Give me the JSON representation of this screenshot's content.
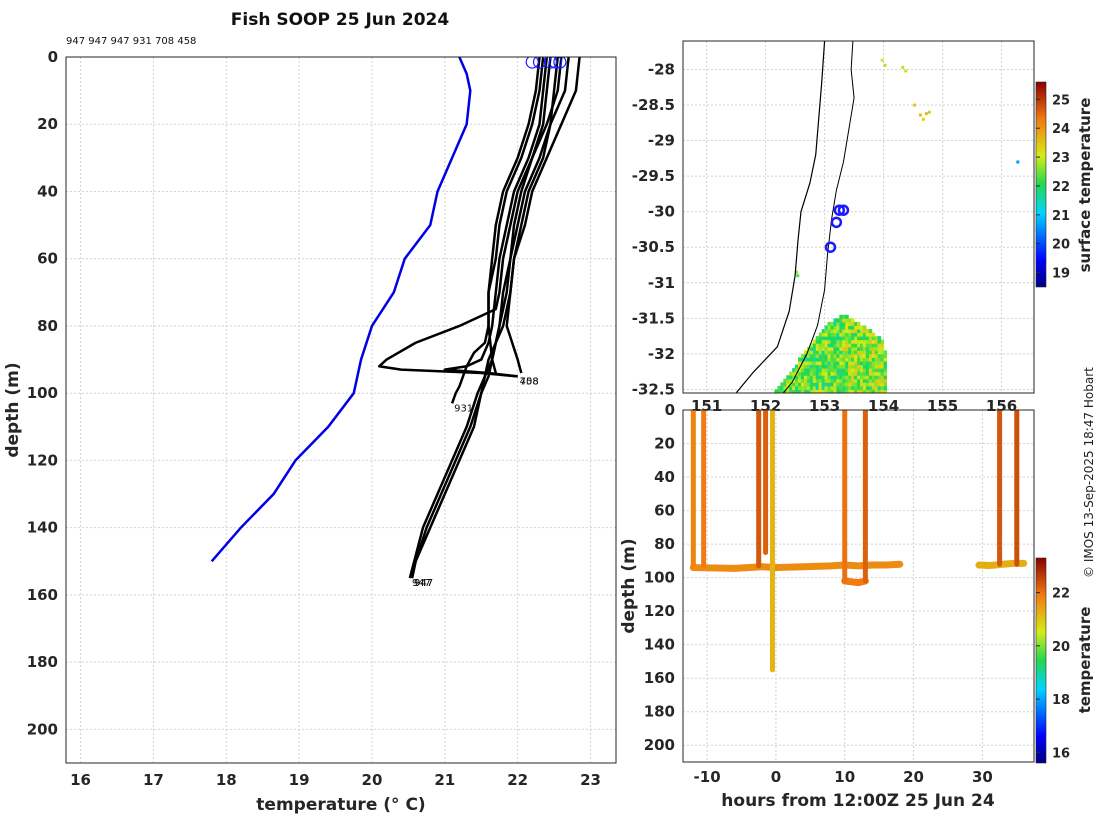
{
  "title": "Fish SOOP 25 Jun 2024",
  "drop_note": "947 947 947 931 708 458",
  "credit": "© IMOS 13-Sep-2025 18:47 Hobart",
  "colors": {
    "profile": "#000000",
    "climatology": "#0000e6",
    "marker": "#1a1aff",
    "coast": "#000000"
  },
  "chart_data": [
    {
      "type": "line",
      "name": "temperature-profiles",
      "xlabel": "temperature (° C)",
      "ylabel": "depth (m)",
      "xlim": [
        15.8,
        23.35
      ],
      "ylim": [
        0,
        210
      ],
      "xticks": [
        16,
        17,
        18,
        19,
        20,
        21,
        22,
        23
      ],
      "yticks": [
        0,
        20,
        40,
        60,
        80,
        100,
        120,
        140,
        160,
        180,
        200
      ],
      "climatology": {
        "depths": [
          0,
          5,
          10,
          20,
          30,
          40,
          50,
          60,
          70,
          80,
          90,
          100,
          110,
          120,
          130,
          140,
          150
        ],
        "values": [
          21.2,
          21.3,
          21.35,
          21.3,
          21.1,
          20.9,
          20.8,
          20.45,
          20.3,
          20.0,
          19.85,
          19.75,
          19.4,
          18.95,
          18.65,
          18.2,
          17.8
        ]
      },
      "series": [
        {
          "name": "p1",
          "label": "947",
          "depths": [
            0,
            10,
            20,
            30,
            40,
            50,
            60,
            70,
            80,
            85,
            90,
            95,
            100,
            110,
            120,
            130,
            140,
            150,
            155
          ],
          "values": [
            22.55,
            22.5,
            22.45,
            22.35,
            22.15,
            22.05,
            21.95,
            21.9,
            21.8,
            21.7,
            21.6,
            21.55,
            21.5,
            21.4,
            21.2,
            21.0,
            20.8,
            20.6,
            20.55
          ]
        },
        {
          "name": "p2",
          "label": "947",
          "depths": [
            0,
            10,
            20,
            30,
            40,
            50,
            60,
            70,
            80,
            85,
            90,
            95,
            100,
            110,
            120,
            130,
            140,
            150,
            155
          ],
          "values": [
            22.7,
            22.65,
            22.45,
            22.3,
            22.1,
            22.0,
            21.9,
            21.85,
            21.75,
            21.7,
            21.65,
            21.6,
            21.5,
            21.35,
            21.15,
            20.95,
            20.75,
            20.6,
            20.55
          ]
        },
        {
          "name": "p3",
          "label": "947",
          "depths": [
            0,
            10,
            20,
            30,
            40,
            50,
            60,
            70,
            80,
            85,
            90,
            95,
            100,
            110,
            120,
            130,
            140,
            150,
            155
          ],
          "values": [
            22.45,
            22.4,
            22.35,
            22.2,
            22.05,
            21.95,
            21.9,
            21.8,
            21.75,
            21.7,
            21.65,
            21.55,
            21.45,
            21.3,
            21.1,
            20.9,
            20.7,
            20.58,
            20.52
          ]
        },
        {
          "name": "p4",
          "label": "931",
          "depths": [
            0,
            10,
            20,
            30,
            40,
            50,
            60,
            70,
            80,
            85,
            88,
            92,
            95,
            98,
            100,
            103
          ],
          "values": [
            22.35,
            22.3,
            22.2,
            22.05,
            21.85,
            21.75,
            21.7,
            21.6,
            21.6,
            21.55,
            21.4,
            21.3,
            21.25,
            21.2,
            21.15,
            21.1
          ]
        },
        {
          "name": "p5",
          "label": "708",
          "depths": [
            0,
            10,
            20,
            30,
            40,
            50,
            60,
            70,
            75,
            80,
            85,
            90,
            92,
            93,
            94,
            95
          ],
          "values": [
            22.6,
            22.55,
            22.4,
            22.2,
            22.0,
            21.9,
            21.8,
            21.75,
            21.7,
            21.2,
            20.6,
            20.2,
            20.1,
            20.4,
            21.5,
            22.0
          ]
        },
        {
          "name": "p6",
          "label": "458",
          "depths": [
            0,
            10,
            20,
            30,
            40,
            50,
            60,
            70,
            80,
            85,
            90,
            92,
            93,
            94,
            95
          ],
          "values": [
            22.4,
            22.35,
            22.3,
            22.15,
            21.95,
            21.85,
            21.75,
            21.7,
            21.65,
            21.6,
            21.5,
            21.3,
            21.0,
            21.6,
            22.0
          ]
        },
        {
          "name": "p7",
          "label": "",
          "depths": [
            0,
            10,
            20,
            30,
            40,
            50,
            60,
            70,
            80,
            90,
            94
          ],
          "values": [
            22.85,
            22.8,
            22.6,
            22.4,
            22.2,
            22.1,
            21.95,
            21.9,
            21.85,
            22.0,
            22.05
          ]
        },
        {
          "name": "p8",
          "label": "",
          "depths": [
            0,
            10,
            20,
            30,
            40,
            50,
            60,
            70,
            80,
            90,
            94
          ],
          "values": [
            22.3,
            22.25,
            22.15,
            22.0,
            21.8,
            21.7,
            21.65,
            21.6,
            21.6,
            21.65,
            21.7
          ]
        }
      ],
      "surface_markers": [
        22.2,
        22.3,
        22.45,
        22.52,
        22.58
      ]
    },
    {
      "type": "heatmap",
      "name": "surface-temperature-map",
      "xlim": [
        150.6,
        156.55
      ],
      "ylim": [
        -32.55,
        -27.6
      ],
      "xticks": [
        151,
        152,
        153,
        154,
        155,
        156
      ],
      "xtick_labels": [
        "151",
        "152",
        "153",
        "154",
        "155",
        "156"
      ],
      "yticks": [
        -28,
        -28.5,
        -29,
        -29.5,
        -30,
        -30.5,
        -31,
        -31.5,
        -32,
        -32.5
      ],
      "ytick_labels": [
        "-28",
        "-28.5",
        "-29",
        "-29.5",
        "-30",
        "-30.5",
        "-31",
        "-31.5",
        "-32",
        "-32.5"
      ],
      "colorbar": {
        "label": "surface temperature",
        "range": [
          18.5,
          25.6
        ],
        "ticks": [
          19,
          20,
          21,
          22,
          23,
          24,
          25
        ]
      },
      "drop_locations": [
        [
          153.25,
          -29.98
        ],
        [
          153.32,
          -29.98
        ],
        [
          153.2,
          -30.15
        ],
        [
          153.1,
          -30.5
        ]
      ]
    },
    {
      "type": "scatter",
      "name": "depth-time-section",
      "xlabel": "hours from 12:00Z 25 Jun 24",
      "ylabel": "depth (m)",
      "xlim": [
        -13.5,
        37.5
      ],
      "ylim": [
        0,
        210
      ],
      "xticks": [
        -10,
        0,
        10,
        20,
        30
      ],
      "yticks": [
        0,
        20,
        40,
        60,
        80,
        100,
        120,
        140,
        160,
        180,
        200
      ],
      "colorbar": {
        "label": "temperature",
        "range": [
          15.6,
          23.3
        ],
        "ticks": [
          16,
          18,
          20,
          22
        ]
      },
      "verticals": [
        {
          "t": -12,
          "bottom": 93,
          "temp": 21.8
        },
        {
          "t": -10.5,
          "bottom": 93,
          "temp": 21.9
        },
        {
          "t": -2.5,
          "bottom": 93,
          "temp": 22.3
        },
        {
          "t": -1.5,
          "bottom": 85,
          "temp": 22.2
        },
        {
          "t": -0.5,
          "bottom": 155,
          "temp": 21.2
        },
        {
          "t": 10,
          "bottom": 102,
          "temp": 22.0
        },
        {
          "t": 13,
          "bottom": 102,
          "temp": 22.2
        },
        {
          "t": 32.5,
          "bottom": 92,
          "temp": 22.3
        },
        {
          "t": 35,
          "bottom": 92,
          "temp": 22.4
        }
      ],
      "bottom_trace": {
        "times": [
          -12,
          -6,
          -2,
          0,
          4,
          8,
          10,
          12,
          14,
          16,
          18
        ],
        "depths": [
          94,
          94.5,
          93.5,
          94,
          93.5,
          93,
          92.5,
          93,
          92.5,
          92.5,
          92
        ],
        "temp": 21.7
      },
      "late_trace": {
        "times": [
          29.5,
          31,
          33,
          34.5,
          36
        ],
        "depths": [
          92.5,
          92.8,
          92,
          91.5,
          91.5
        ],
        "temp": 21.3
      },
      "dip_trace": {
        "times": [
          10,
          11,
          12,
          13
        ],
        "depths": [
          102,
          102.5,
          103,
          102
        ],
        "temp": 21.9
      }
    }
  ]
}
